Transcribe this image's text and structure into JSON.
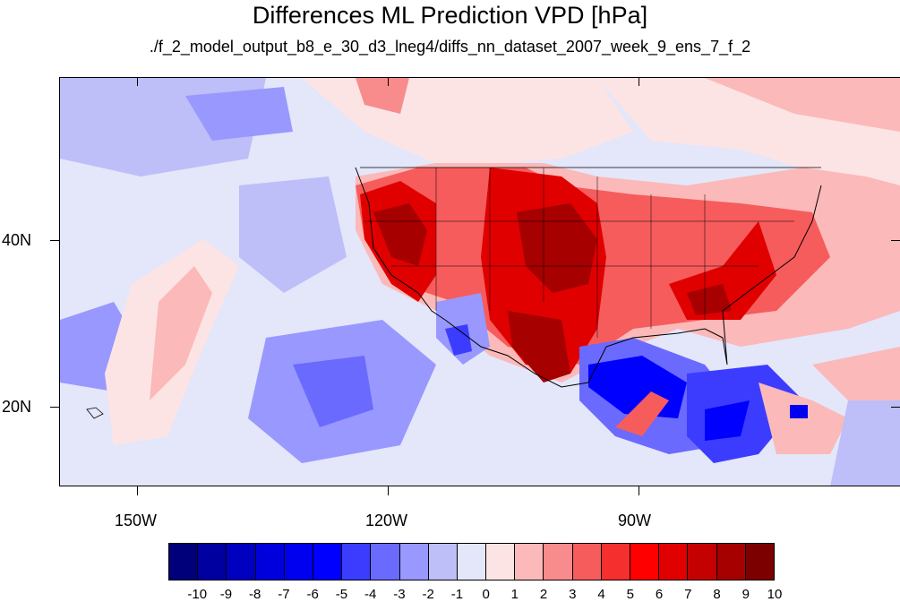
{
  "title": "Differences ML Prediction VPD [hPa]",
  "subtitle": "./f_2_model_output_b8_e_30_d3_lneg4/diffs_nn_dataset_2007_week_9_ens_7_f_2",
  "axes": {
    "x_labels": [
      "150W",
      "120W",
      "90W"
    ],
    "y_labels": [
      "40N",
      "20N"
    ]
  },
  "map": {
    "lon_range": [
      -160,
      -60
    ],
    "lat_range": [
      10,
      59
    ],
    "field": "VPD difference",
    "background_color": "#e4e6fa"
  },
  "colorbar": {
    "labels": [
      "-10",
      "-9",
      "-8",
      "-7",
      "-6",
      "-5",
      "-4",
      "-3",
      "-2",
      "-1",
      "0",
      "1",
      "2",
      "3",
      "4",
      "5",
      "6",
      "7",
      "8",
      "9",
      "10"
    ],
    "colors": [
      "#00007a",
      "#0000a0",
      "#0000c0",
      "#0000dc",
      "#0000f0",
      "#0000ff",
      "#3c3cff",
      "#6a6aff",
      "#9898ff",
      "#bebef8",
      "#e4e6fa",
      "#fde4e4",
      "#fbb9b9",
      "#f88c8c",
      "#f65c5c",
      "#f52e2e",
      "#ff0000",
      "#e00000",
      "#c40000",
      "#a60000",
      "#7c0000"
    ]
  }
}
